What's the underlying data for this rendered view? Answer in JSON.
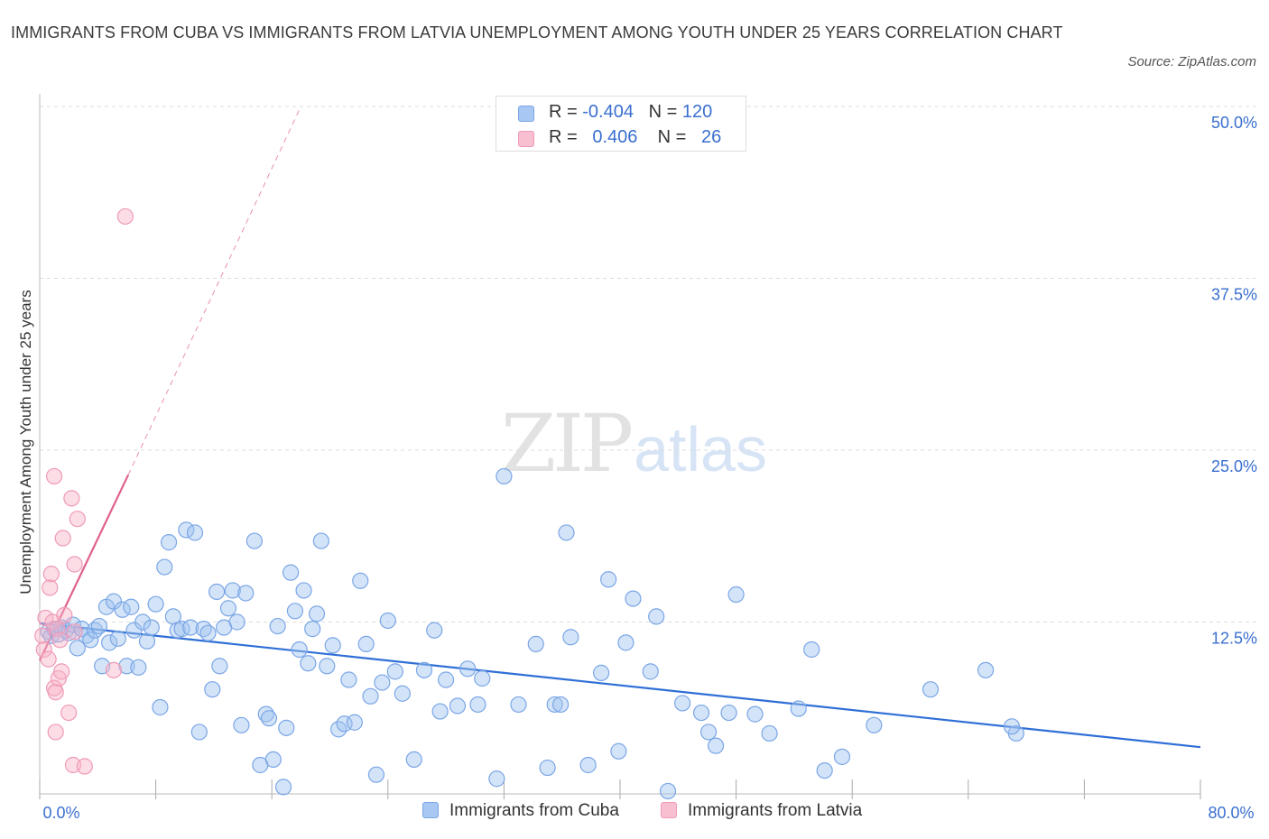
{
  "title": "IMMIGRANTS FROM CUBA VS IMMIGRANTS FROM LATVIA UNEMPLOYMENT AMONG YOUTH UNDER 25 YEARS CORRELATION CHART",
  "source": "Source: ZipAtlas.com",
  "watermark": {
    "zip": "ZIP",
    "atlas": "atlas"
  },
  "legend": {
    "rows": [
      {
        "r_label": "R =",
        "r_value": "-0.404",
        "n_label": "N =",
        "n_value": "120"
      },
      {
        "r_label": "R =",
        "r_value": "0.406",
        "n_label": "N =",
        "n_value": "26"
      }
    ]
  },
  "bottom_legend": {
    "cuba": "Immigrants from Cuba",
    "latvia": "Immigrants from Latvia"
  },
  "colors": {
    "cuba_fill": "rgba(160,195,240,0.45)",
    "cuba_stroke": "#7aa6e6",
    "cuba_line": "#2f6fd6",
    "latvia_fill": "rgba(248,180,200,0.45)",
    "latvia_stroke": "#ef9ab6",
    "latvia_line": "#e0608e",
    "axis_label": "#3a6fd0",
    "grid": "#dddddd"
  },
  "chart_data": {
    "type": "scatter",
    "title": "IMMIGRANTS FROM CUBA VS IMMIGRANTS FROM LATVIA UNEMPLOYMENT AMONG YOUTH UNDER 25 YEARS CORRELATION CHART",
    "xlabel": "",
    "ylabel": "Unemployment Among Youth under 25 years",
    "xlim": [
      0,
      80
    ],
    "ylim": [
      0,
      50
    ],
    "x_tick_labels": [
      "0.0%",
      "80.0%"
    ],
    "y_tick_values": [
      12.5,
      25,
      37.5,
      50
    ],
    "y_tick_labels": [
      "12.5%",
      "25.0%",
      "37.5%",
      "50.0%"
    ],
    "grid": true,
    "legend_position": "top-center",
    "series": [
      {
        "name": "Immigrants from Cuba",
        "trend": {
          "x": [
            0,
            80
          ],
          "y": [
            12.4,
            3.4
          ]
        },
        "points": [
          [
            0.6,
            11.8
          ],
          [
            0.8,
            11.5
          ],
          [
            1.0,
            12.0
          ],
          [
            1.3,
            11.6
          ],
          [
            1.5,
            12.1
          ],
          [
            1.8,
            11.9
          ],
          [
            2.0,
            11.7
          ],
          [
            2.3,
            12.3
          ],
          [
            2.6,
            10.6
          ],
          [
            2.9,
            12.0
          ],
          [
            3.2,
            11.5
          ],
          [
            3.5,
            11.2
          ],
          [
            3.8,
            11.9
          ],
          [
            4.1,
            12.2
          ],
          [
            4.3,
            9.3
          ],
          [
            4.6,
            13.6
          ],
          [
            4.8,
            11.0
          ],
          [
            5.1,
            14.0
          ],
          [
            5.4,
            11.3
          ],
          [
            5.7,
            13.4
          ],
          [
            6.0,
            9.3
          ],
          [
            6.3,
            13.6
          ],
          [
            6.5,
            11.9
          ],
          [
            6.8,
            9.2
          ],
          [
            7.1,
            12.5
          ],
          [
            7.4,
            11.1
          ],
          [
            7.7,
            12.1
          ],
          [
            8.0,
            13.8
          ],
          [
            8.3,
            6.3
          ],
          [
            8.6,
            16.5
          ],
          [
            8.9,
            18.3
          ],
          [
            9.2,
            12.9
          ],
          [
            9.5,
            11.9
          ],
          [
            9.8,
            12.0
          ],
          [
            10.1,
            19.2
          ],
          [
            10.4,
            12.1
          ],
          [
            10.7,
            19.0
          ],
          [
            11.0,
            4.5
          ],
          [
            11.3,
            12.0
          ],
          [
            11.6,
            11.7
          ],
          [
            11.9,
            7.6
          ],
          [
            12.2,
            14.7
          ],
          [
            12.4,
            9.3
          ],
          [
            12.7,
            12.1
          ],
          [
            13.0,
            13.5
          ],
          [
            13.3,
            14.8
          ],
          [
            13.6,
            12.5
          ],
          [
            13.9,
            5.0
          ],
          [
            14.2,
            14.6
          ],
          [
            14.8,
            18.4
          ],
          [
            15.2,
            2.1
          ],
          [
            15.6,
            5.8
          ],
          [
            15.8,
            5.5
          ],
          [
            16.1,
            2.5
          ],
          [
            16.4,
            12.2
          ],
          [
            16.8,
            0.5
          ],
          [
            17.0,
            4.8
          ],
          [
            17.3,
            16.1
          ],
          [
            17.6,
            13.3
          ],
          [
            17.9,
            10.5
          ],
          [
            18.2,
            14.8
          ],
          [
            18.5,
            9.5
          ],
          [
            18.8,
            12.0
          ],
          [
            19.1,
            13.1
          ],
          [
            19.4,
            18.4
          ],
          [
            19.8,
            9.3
          ],
          [
            20.2,
            10.8
          ],
          [
            20.6,
            4.7
          ],
          [
            21.0,
            5.1
          ],
          [
            21.3,
            8.3
          ],
          [
            21.7,
            5.2
          ],
          [
            22.1,
            15.5
          ],
          [
            22.5,
            10.9
          ],
          [
            22.8,
            7.1
          ],
          [
            23.2,
            1.4
          ],
          [
            23.6,
            8.1
          ],
          [
            24.0,
            12.6
          ],
          [
            24.5,
            8.9
          ],
          [
            25.0,
            7.3
          ],
          [
            25.8,
            2.5
          ],
          [
            26.5,
            9.0
          ],
          [
            27.2,
            11.9
          ],
          [
            27.6,
            6.0
          ],
          [
            28.0,
            8.3
          ],
          [
            28.8,
            6.4
          ],
          [
            29.5,
            9.1
          ],
          [
            30.2,
            6.5
          ],
          [
            30.5,
            8.4
          ],
          [
            31.5,
            1.1
          ],
          [
            32.0,
            23.1
          ],
          [
            33.0,
            6.5
          ],
          [
            34.2,
            10.9
          ],
          [
            35.0,
            1.9
          ],
          [
            35.5,
            6.5
          ],
          [
            35.9,
            6.5
          ],
          [
            36.3,
            19.0
          ],
          [
            36.6,
            11.4
          ],
          [
            37.8,
            2.1
          ],
          [
            38.7,
            8.8
          ],
          [
            39.2,
            15.6
          ],
          [
            39.9,
            3.1
          ],
          [
            40.4,
            11.0
          ],
          [
            40.9,
            14.2
          ],
          [
            42.1,
            8.9
          ],
          [
            42.5,
            12.9
          ],
          [
            43.3,
            0.2
          ],
          [
            44.3,
            6.6
          ],
          [
            45.6,
            5.9
          ],
          [
            46.1,
            4.5
          ],
          [
            46.6,
            3.5
          ],
          [
            47.5,
            5.9
          ],
          [
            48.0,
            14.5
          ],
          [
            49.3,
            5.8
          ],
          [
            50.3,
            4.4
          ],
          [
            52.3,
            6.2
          ],
          [
            53.2,
            10.5
          ],
          [
            54.1,
            1.7
          ],
          [
            55.3,
            2.7
          ],
          [
            57.5,
            5.0
          ],
          [
            61.4,
            7.6
          ],
          [
            65.2,
            9.0
          ],
          [
            67.3,
            4.4
          ],
          [
            67.0,
            4.9
          ]
        ]
      },
      {
        "name": "Immigrants from Latvia",
        "trend": {
          "x": [
            0,
            6.1,
            18.0
          ],
          "y": [
            9.7,
            23.2,
            50.0
          ]
        },
        "points": [
          [
            0.2,
            11.5
          ],
          [
            0.3,
            10.5
          ],
          [
            0.4,
            12.8
          ],
          [
            0.6,
            9.8
          ],
          [
            0.7,
            15.0
          ],
          [
            0.8,
            16.0
          ],
          [
            0.9,
            12.5
          ],
          [
            1.0,
            23.1
          ],
          [
            1.0,
            7.7
          ],
          [
            1.1,
            7.4
          ],
          [
            1.2,
            12.0
          ],
          [
            1.1,
            4.5
          ],
          [
            1.3,
            8.4
          ],
          [
            1.4,
            11.2
          ],
          [
            1.5,
            8.9
          ],
          [
            1.6,
            18.6
          ],
          [
            1.7,
            13.0
          ],
          [
            2.0,
            5.9
          ],
          [
            2.2,
            21.5
          ],
          [
            2.3,
            2.1
          ],
          [
            2.4,
            16.7
          ],
          [
            2.6,
            20.0
          ],
          [
            3.1,
            2.0
          ],
          [
            5.1,
            9.0
          ],
          [
            5.9,
            42.0
          ],
          [
            2.4,
            11.8
          ]
        ]
      }
    ]
  }
}
